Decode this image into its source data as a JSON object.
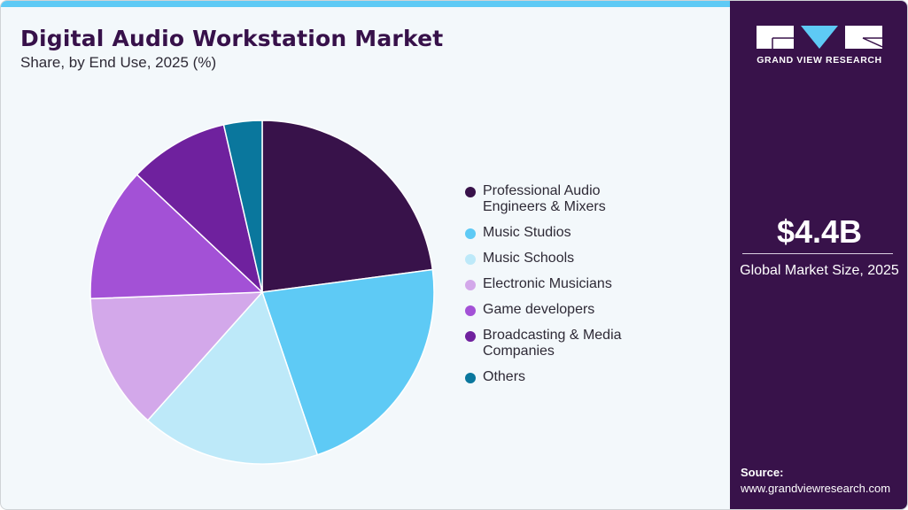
{
  "header": {
    "title": "Digital Audio Workstation Market",
    "subtitle": "Share, by End Use, 2025 (%)"
  },
  "colors": {
    "accent_bar": "#5ecaf5",
    "side_panel": "#38124a",
    "background": "#f3f8fb"
  },
  "chart_data": {
    "type": "pie",
    "title": "Digital Audio Workstation Market",
    "subtitle": "Share, by End Use, 2025 (%)",
    "start_angle": "12 o'clock, clockwise",
    "legend_position": "right",
    "categories": [
      "Professional Audio Engineers & Mixers",
      "Music Studios",
      "Music Schools",
      "Electronic Musicians",
      "Game developers",
      "Broadcasting & Media Companies",
      "Others"
    ],
    "values": [
      22.9,
      21.9,
      16.8,
      12.8,
      12.6,
      9.4,
      3.6
    ],
    "colors": [
      "#38124a",
      "#5ecaf5",
      "#bde9f9",
      "#d3a8ea",
      "#a351d6",
      "#6f219e",
      "#0a779d"
    ]
  },
  "legend": {
    "items": [
      {
        "label": "Professional Audio Engineers & Mixers",
        "color": "#38124a"
      },
      {
        "label": "Music Studios",
        "color": "#5ecaf5"
      },
      {
        "label": "Music Schools",
        "color": "#bde9f9"
      },
      {
        "label": "Electronic Musicians",
        "color": "#d3a8ea"
      },
      {
        "label": "Game developers",
        "color": "#a351d6"
      },
      {
        "label": "Broadcasting & Media Companies",
        "color": "#6f219e"
      },
      {
        "label": "Others",
        "color": "#0a779d"
      }
    ]
  },
  "side_panel": {
    "logo_text": "GRAND VIEW RESEARCH",
    "market_value": "$4.4B",
    "market_label": "Global Market Size, 2025",
    "source_label": "Source:",
    "source_url": "www.grandviewresearch.com"
  }
}
